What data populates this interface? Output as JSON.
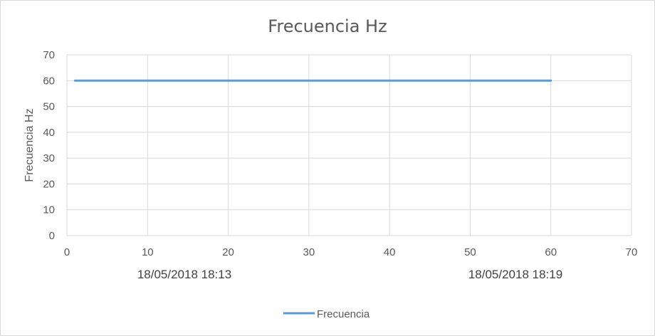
{
  "chart_data": {
    "type": "line",
    "title": "Frecuencia Hz",
    "ylabel": "Frecuencia Hz",
    "xlabel": "",
    "xlim": [
      0,
      70
    ],
    "ylim": [
      0,
      70
    ],
    "xticks": [
      0,
      10,
      20,
      30,
      40,
      50,
      60,
      70
    ],
    "yticks": [
      0,
      10,
      20,
      30,
      40,
      50,
      60,
      70
    ],
    "grid": true,
    "legend_position": "bottom",
    "date_labels": [
      "18/05/2018 18:13",
      "18/05/2018 18:19"
    ],
    "series": [
      {
        "name": "Frecuencia",
        "color": "#5b9bd5",
        "x": [
          1,
          60
        ],
        "y": [
          60,
          60
        ]
      }
    ]
  }
}
